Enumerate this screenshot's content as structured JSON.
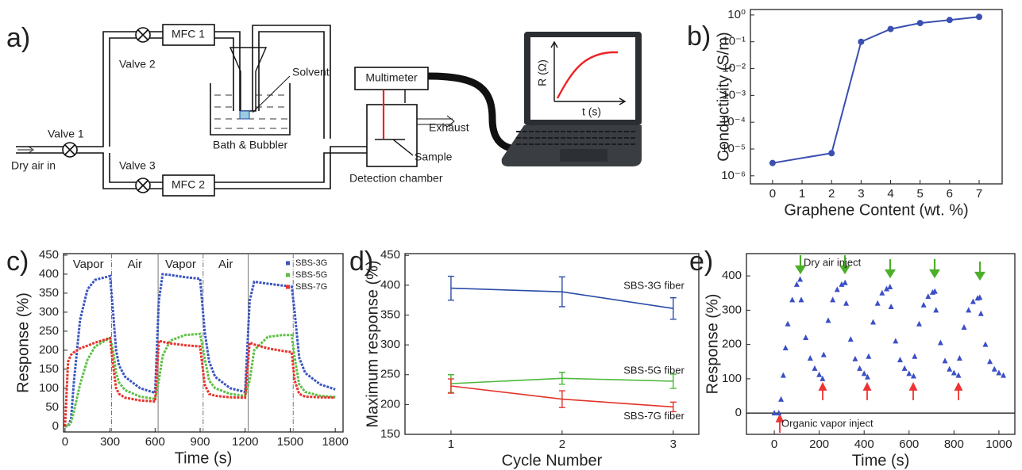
{
  "diagram": {
    "panel_label": "a)",
    "valve_1": "Valve 1",
    "valve_2": "Valve 2",
    "valve_3": "Valve 3",
    "mfc_1": "MFC 1",
    "mfc_2": "MFC 2",
    "solvent": "Solvent",
    "bath": "Bath & Bubbler",
    "inlet": "Dry air in",
    "multimeter": "Multimeter",
    "exhaust": "Exhaust",
    "sample": "Sample",
    "chamber": "Detection chamber",
    "inset_y": "R (Ω)",
    "inset_x": "t (s)"
  },
  "chart_data": [
    {
      "type": "line",
      "panel_label": "b)",
      "x_label": "Graphene Content (wt. %)",
      "y_label": "Conductivity (S/m)",
      "color": "#3a4fb0",
      "log_y": true,
      "x": [
        0,
        2,
        3,
        4,
        5,
        6,
        7
      ],
      "values": [
        3e-06,
        7e-06,
        0.1,
        0.3,
        0.5,
        0.65,
        0.85
      ],
      "xlim": [
        -0.75,
        7.78
      ],
      "xticks": [
        0,
        1,
        2,
        3,
        4,
        5,
        6,
        7
      ],
      "ylim": [
        5e-07,
        1.6
      ],
      "yticks": [
        {
          "value": 1e-06,
          "label": "10⁻⁶"
        },
        {
          "value": 1e-05,
          "label": "10⁻⁵"
        },
        {
          "value": 0.0001,
          "label": "10⁻⁴"
        },
        {
          "value": 0.001,
          "label": "10⁻³"
        },
        {
          "value": 0.01,
          "label": "10⁻²"
        },
        {
          "value": 0.1,
          "label": "10⁻¹"
        },
        {
          "value": 1,
          "label": "10⁰"
        }
      ]
    },
    {
      "type": "line",
      "panel_label": "c)",
      "x_label": "Time (s)",
      "y_label": "Response (%)",
      "legend": "upper right",
      "annotations": [
        "Vapor",
        "Air",
        "Vapor",
        "Air"
      ],
      "dividers": [
        310,
        620,
        920,
        1220,
        1520
      ],
      "x": [
        0,
        20,
        40,
        60,
        100,
        150,
        200,
        300,
        320,
        340,
        360,
        400,
        500,
        600,
        625,
        650,
        700,
        800,
        900,
        930,
        960,
        1000,
        1100,
        1200,
        1230,
        1260,
        1350,
        1450,
        1510,
        1530,
        1560,
        1600,
        1700,
        1800
      ],
      "series": [
        {
          "name": "SBS-3G",
          "color": "#3a55c0",
          "values": [
            0,
            0,
            20,
            120,
            280,
            360,
            385,
            395,
            300,
            200,
            160,
            130,
            100,
            88,
            330,
            400,
            398,
            392,
            388,
            250,
            170,
            130,
            100,
            90,
            330,
            380,
            375,
            370,
            368,
            300,
            180,
            140,
            110,
            97
          ]
        },
        {
          "name": "SBS-5G",
          "color": "#5cc043",
          "values": [
            0,
            0,
            10,
            40,
            110,
            175,
            210,
            232,
            200,
            140,
            115,
            95,
            78,
            72,
            120,
            185,
            225,
            240,
            243,
            180,
            120,
            100,
            85,
            80,
            120,
            200,
            235,
            240,
            240,
            180,
            110,
            90,
            80,
            77
          ]
        },
        {
          "name": "SBS-7G",
          "color": "#e8322c",
          "values": [
            0,
            170,
            188,
            195,
            205,
            212,
            220,
            232,
            160,
            100,
            85,
            75,
            68,
            65,
            225,
            222,
            218,
            213,
            210,
            110,
            85,
            80,
            76,
            75,
            220,
            215,
            205,
            198,
            195,
            120,
            85,
            78,
            76,
            75
          ]
        }
      ],
      "xlim": [
        -10,
        1852
      ],
      "xticks": [
        0,
        300,
        600,
        900,
        1200,
        1500,
        1800
      ],
      "ylim": [
        -15,
        454
      ],
      "yticks": [
        0,
        50,
        100,
        150,
        200,
        250,
        300,
        350,
        400,
        450
      ]
    },
    {
      "type": "errorbar",
      "panel_label": "d)",
      "x_label": "Cycle Number",
      "y_label": "Maximum response (%)",
      "x": [
        1,
        2,
        3
      ],
      "series": [
        {
          "name": "SBS-3G fiber",
          "color": "#2a4ca8",
          "values": [
            395,
            389,
            361
          ],
          "errors": [
            20,
            25,
            18
          ]
        },
        {
          "name": "SBS-5G fiber",
          "color": "#4cb83a",
          "values": [
            235,
            244,
            239
          ],
          "errors": [
            15,
            10,
            12
          ]
        },
        {
          "name": "SBS-7G fiber",
          "color": "#e2342b",
          "values": [
            231,
            209,
            196
          ],
          "errors": [
            12,
            14,
            8
          ]
        }
      ],
      "xlim": [
        0.586,
        3.23
      ],
      "xticks": [
        1,
        2,
        3
      ],
      "ylim": [
        150,
        453
      ],
      "yticks": [
        150,
        200,
        250,
        300,
        350,
        400,
        450
      ]
    },
    {
      "type": "scatter",
      "panel_label": "e)",
      "x_label": "Time (s)",
      "y_label": "Response (%)",
      "color": "#3b4fc4",
      "annotations": [
        "Dry air inject",
        "Organic vapor inject"
      ],
      "x": [
        0,
        20,
        30,
        40,
        50,
        60,
        80,
        100,
        115,
        120,
        140,
        160,
        180,
        200,
        215,
        220,
        240,
        260,
        280,
        300,
        315,
        320,
        340,
        360,
        380,
        400,
        415,
        420,
        440,
        460,
        480,
        500,
        515,
        520,
        540,
        560,
        580,
        600,
        620,
        625,
        645,
        665,
        685,
        705,
        715,
        720,
        740,
        760,
        780,
        800,
        820,
        825,
        845,
        865,
        885,
        905,
        915,
        920,
        940,
        960,
        980,
        1000,
        1020
      ],
      "values": [
        0,
        0,
        40,
        110,
        190,
        260,
        330,
        375,
        390,
        330,
        220,
        160,
        130,
        112,
        100,
        170,
        270,
        330,
        360,
        375,
        380,
        320,
        215,
        158,
        130,
        115,
        105,
        165,
        265,
        320,
        350,
        362,
        368,
        310,
        210,
        155,
        130,
        115,
        108,
        165,
        260,
        315,
        340,
        352,
        355,
        300,
        205,
        152,
        128,
        117,
        110,
        160,
        250,
        300,
        325,
        335,
        337,
        290,
        200,
        150,
        128,
        117,
        110
      ],
      "xlim": [
        -124,
        1071
      ],
      "xticks": [
        0,
        200,
        400,
        600,
        800,
        1000
      ],
      "ylim": [
        -62,
        465
      ],
      "yticks": [
        0,
        100,
        200,
        300,
        400
      ]
    }
  ]
}
